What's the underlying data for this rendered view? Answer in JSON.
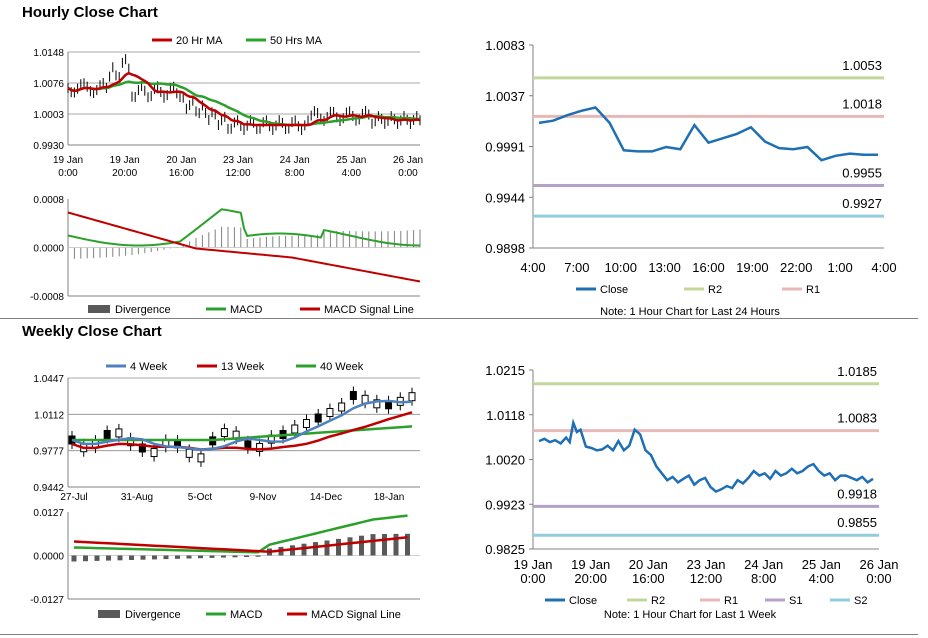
{
  "hourly": {
    "title": "Hourly Close Chart",
    "price_legend": [
      "20 Hr MA",
      "50 Hrs MA"
    ],
    "macd_legend": [
      "Divergence",
      "MACD",
      "MACD Signal Line"
    ],
    "price_y_ticks": [
      "1.0148",
      "1.0076",
      "1.0003",
      "0.9930"
    ],
    "macd_y_ticks": [
      "0.0008",
      "0.0000",
      "-0.0008"
    ],
    "x_ticks": [
      [
        "19 Jan",
        "0:00"
      ],
      [
        "19 Jan",
        "20:00"
      ],
      [
        "20 Jan",
        "16:00"
      ],
      [
        "23 Jan",
        "12:00"
      ],
      [
        "24 Jan",
        "8:00"
      ],
      [
        "25 Jan",
        "4:00"
      ],
      [
        "26 Jan",
        "0:00"
      ]
    ]
  },
  "weekly": {
    "title": "Weekly Close Chart",
    "price_legend": [
      "4 Week",
      "13 Week",
      "40 Week"
    ],
    "macd_legend": [
      "Divergence",
      "MACD",
      "MACD Signal Line"
    ],
    "price_y_ticks": [
      "1.0447",
      "1.0112",
      "0.9777",
      "0.9442"
    ],
    "macd_y_ticks": [
      "0.0127",
      "0.0000",
      "-0.0127"
    ],
    "x_ticks": [
      "27-Jul",
      "31-Aug",
      "5-Oct",
      "9-Nov",
      "14-Dec",
      "18-Jan"
    ]
  },
  "chart_data": [
    {
      "type": "line",
      "name_ref": "24h",
      "ylim": [
        0.9898,
        1.0083
      ],
      "y_ticks": [
        "1.0083",
        "1.0037",
        "0.9991",
        "0.9944",
        "0.9898"
      ],
      "categories": [
        "4:00",
        "7:00",
        "10:00",
        "13:00",
        "16:00",
        "19:00",
        "22:00",
        "1:00",
        "4:00"
      ],
      "series": [
        {
          "name": "Close",
          "color": "#1f6fb5",
          "x": [
            0,
            1,
            2,
            3,
            4,
            5,
            6,
            7,
            8,
            9,
            10,
            11,
            12,
            13,
            14,
            15,
            16,
            17,
            18,
            19,
            20,
            21,
            22,
            23,
            24
          ],
          "values": [
            1.0012,
            1.0014,
            1.0019,
            1.0023,
            1.0026,
            1.0012,
            0.9987,
            0.9986,
            0.9986,
            0.999,
            0.9988,
            1.001,
            0.9994,
            0.9998,
            1.0002,
            1.0008,
            0.9995,
            0.9989,
            0.9988,
            0.999,
            0.9978,
            0.9982,
            0.9984,
            0.9983,
            0.9983
          ]
        }
      ],
      "levels": [
        {
          "name": "R2",
          "value": 1.0053,
          "label": "1.0053",
          "color": "#c3d69b"
        },
        {
          "name": "R1",
          "value": 1.0018,
          "label": "1.0018",
          "color": "#e6b9b8"
        },
        {
          "name": "S1",
          "value": 0.9955,
          "label": "0.9955",
          "color": "#b3a2c7"
        },
        {
          "name": "S2",
          "value": 0.9927,
          "label": "0.9927",
          "color": "#93cddd"
        }
      ],
      "legend": [
        "Close",
        "R2",
        "R1"
      ],
      "note": "Note: 1 Hour Chart for Last 24 Hours"
    },
    {
      "type": "line",
      "name_ref": "week",
      "ylim": [
        0.9825,
        1.0215
      ],
      "y_ticks": [
        "1.0215",
        "1.0118",
        "1.0020",
        "0.9923",
        "0.9825"
      ],
      "categories": [
        [
          "19 Jan",
          "0:00"
        ],
        [
          "19 Jan",
          "20:00"
        ],
        [
          "20 Jan",
          "16:00"
        ],
        [
          "23 Jan",
          "12:00"
        ],
        [
          "24 Jan",
          "8:00"
        ],
        [
          "25 Jan",
          "4:00"
        ],
        [
          "26 Jan",
          "0:00"
        ]
      ],
      "series": [
        {
          "name": "Close",
          "color": "#1f6fb5",
          "x": [
            0,
            0.3,
            0.6,
            0.9,
            1.2,
            1.5,
            1.7,
            1.9,
            2.1,
            2.3,
            2.6,
            2.9,
            3.2,
            3.5,
            3.8,
            4.1,
            4.4,
            4.7,
            5.0,
            5.3,
            5.6,
            5.9,
            6.2,
            6.5,
            6.8,
            7.1,
            7.4,
            7.7,
            8.0,
            8.3,
            8.6,
            8.9,
            9.2,
            9.5,
            9.8,
            10.1,
            10.4,
            10.7,
            11.0,
            11.3,
            11.6,
            11.9,
            12.2,
            12.5,
            12.8,
            13.1,
            13.4,
            13.7,
            14.0,
            14.3,
            14.6,
            14.9,
            15.2,
            15.5,
            15.8,
            16.1,
            16.4,
            16.7,
            17.0,
            17.3,
            17.6,
            17.9,
            18.2,
            18.5
          ],
          "values": [
            1.006,
            1.0065,
            1.0058,
            1.0062,
            1.0055,
            1.0068,
            1.0058,
            1.01,
            1.008,
            1.0085,
            1.0048,
            1.0045,
            1.004,
            1.0042,
            1.005,
            1.004,
            1.006,
            1.004,
            1.005,
            1.0085,
            1.0075,
            1.004,
            1.003,
            1.0005,
            0.999,
            0.9975,
            0.9982,
            0.997,
            0.9978,
            0.9985,
            0.9965,
            0.9975,
            0.998,
            0.996,
            0.995,
            0.9955,
            0.9962,
            0.9958,
            0.9975,
            0.9968,
            0.998,
            0.9995,
            0.9985,
            0.999,
            0.9978,
            0.9995,
            0.9985,
            0.999,
            1.0,
            0.999,
            0.9995,
            1.0005,
            1.001,
            0.9995,
            0.9985,
            0.999,
            0.9975,
            0.9985,
            0.9985,
            0.998,
            0.9975,
            0.9982,
            0.997,
            0.9978
          ]
        }
      ],
      "levels": [
        {
          "name": "R2",
          "value": 1.0185,
          "label": "1.0185",
          "color": "#c3d69b"
        },
        {
          "name": "R1",
          "value": 1.0083,
          "label": "1.0083",
          "color": "#e6b9b8"
        },
        {
          "name": "S1",
          "value": 0.9918,
          "label": "0.9918",
          "color": "#b3a2c7"
        },
        {
          "name": "S2",
          "value": 0.9855,
          "label": "0.9855",
          "color": "#93cddd"
        }
      ],
      "legend": [
        "Close",
        "R2",
        "R1",
        "S1",
        "S2"
      ],
      "note": "Note: 1 Hour Chart for Last 1 Week"
    }
  ]
}
